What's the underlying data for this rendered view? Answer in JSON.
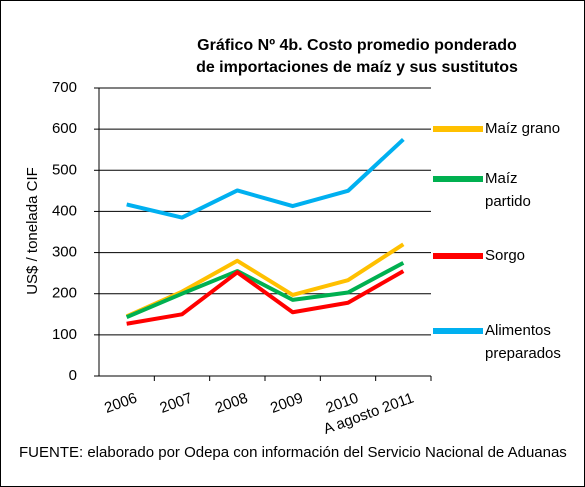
{
  "chart_data": {
    "type": "line",
    "title": "Gráfico Nº 4b. Costo promedio ponderado",
    "subtitle": "de importaciones de maíz y sus sustitutos",
    "y_label": "US$ / tonelada CIF",
    "categories": [
      "2006",
      "2007",
      "2008",
      "2009",
      "2010",
      "A agosto 2011"
    ],
    "series": [
      {
        "name": "Maíz grano",
        "color": "#ffc000",
        "values": [
          145,
          205,
          280,
          197,
          233,
          320
        ]
      },
      {
        "name": "Maíz partido",
        "color": "#00b050",
        "values": [
          143,
          200,
          255,
          185,
          203,
          275
        ]
      },
      {
        "name": "Sorgo",
        "color": "#ff0000",
        "values": [
          127,
          150,
          252,
          155,
          178,
          255
        ]
      },
      {
        "name": "Alimentos preparados",
        "color": "#00b0f0",
        "values": [
          417,
          385,
          451,
          413,
          450,
          575
        ]
      }
    ],
    "ylim": [
      0,
      700
    ],
    "yticks": [
      0,
      100,
      200,
      300,
      400,
      500,
      600,
      700
    ],
    "grid": true,
    "source": "FUENTE: elaborado por Odepa con información del Servicio Nacional de Aduanas"
  }
}
